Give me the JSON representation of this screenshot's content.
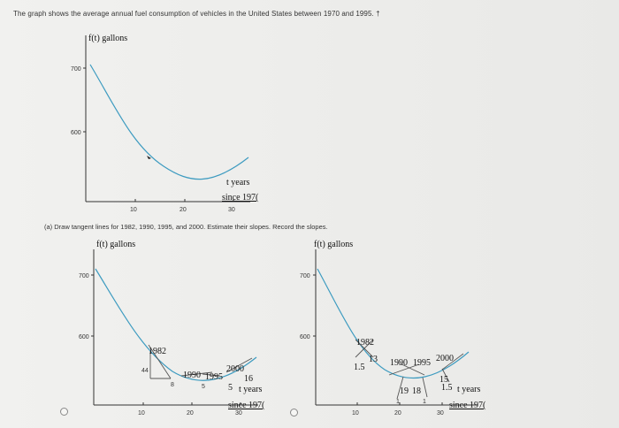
{
  "question": {
    "text": "The graph shows the average annual fuel consumption of vehicles in the United States between 1970 and 1995. †",
    "part_a": "(a) Draw tangent lines for 1982, 1990, 1995, and 2000. Estimate their slopes. Record the slopes."
  },
  "graph_top": {
    "y_axis_label": "f(t) gallons",
    "y_ticks": [
      "700",
      "600"
    ],
    "x_ticks": [
      "10",
      "20",
      "30"
    ],
    "x_label_line1": "t years",
    "x_label_line2": "since 197("
  },
  "option_left": {
    "y_axis_label": "f(t) gallons",
    "y_ticks": [
      "700",
      "600"
    ],
    "x_ticks": [
      "10",
      "20",
      "30"
    ],
    "x_label_line1": "t years",
    "x_label_line2": "since 197(",
    "annotations": {
      "y1982": "1982",
      "s44": "44",
      "s8": "8",
      "y1990": "1990",
      "y1995": "1995",
      "s5": "5",
      "y2000": "2000",
      "s16": "16",
      "s5b": "5"
    }
  },
  "option_right": {
    "y_axis_label": "f(t) gallons",
    "y_ticks": [
      "700",
      "600"
    ],
    "x_ticks": [
      "10",
      "20",
      "30"
    ],
    "x_label_line1": "t years",
    "x_label_line2": "since 197(",
    "annotations": {
      "y1982": "1982",
      "s13": "13",
      "s15": "1.5",
      "y1990": "1990",
      "y1995": "1995",
      "y2000": "2000",
      "s19": "19",
      "s18": "18",
      "s1a": "1",
      "s1b": "1",
      "s15b": "15",
      "s15c": "1.5"
    }
  }
}
